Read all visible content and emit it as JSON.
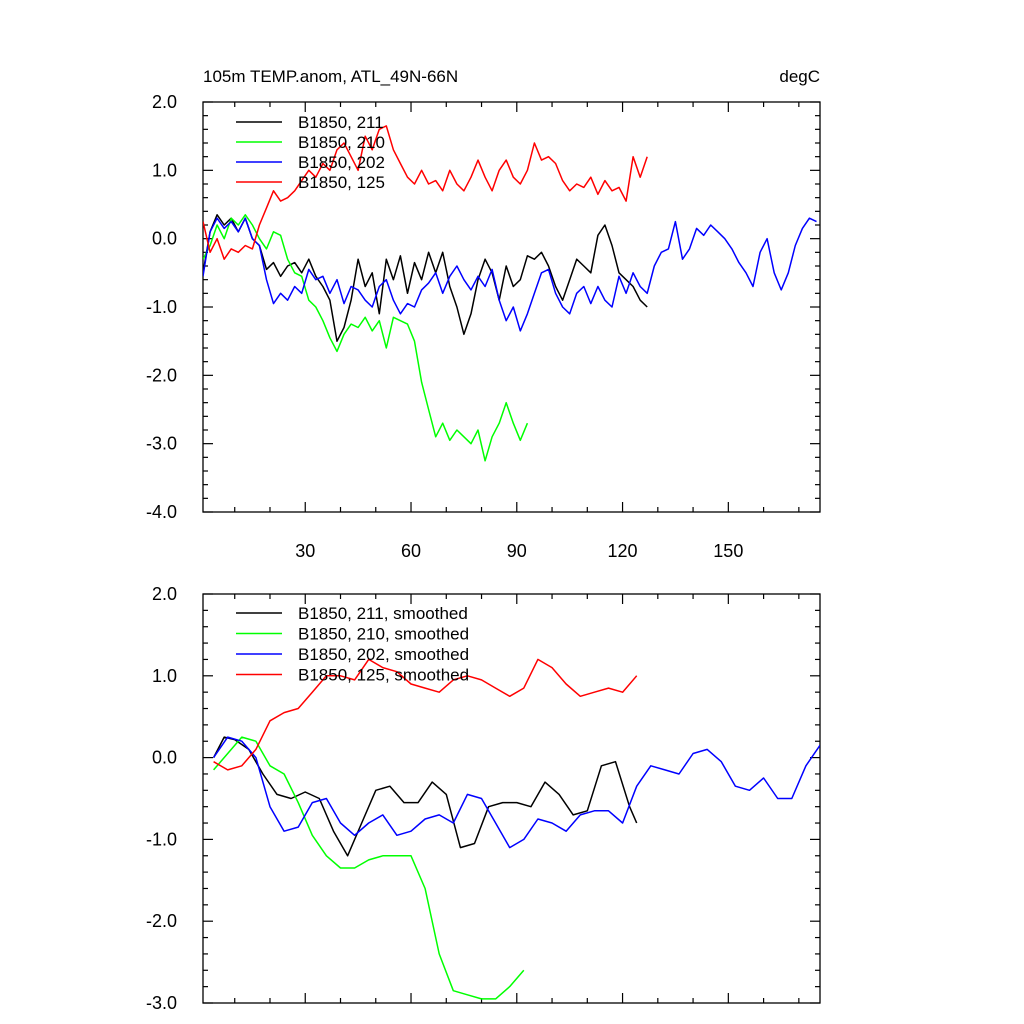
{
  "chart_data": [
    {
      "type": "line",
      "title": "105m TEMP.anom, ATL_49N-66N",
      "units": "degC",
      "xlabel": "",
      "ylabel": "",
      "xlim": [
        1,
        176
      ],
      "ylim": [
        -4.0,
        2.0
      ],
      "yticks": [
        -4.0,
        -3.0,
        -2.0,
        -1.0,
        0.0,
        1.0,
        2.0
      ],
      "ytick_labels": [
        "-4.0",
        "-3.0",
        "-2.0",
        "-1.0",
        "0.0",
        "1.0",
        "2.0"
      ],
      "xticks": [
        30,
        60,
        90,
        120,
        150
      ],
      "xtick_labels": [
        "30",
        "60",
        "90",
        "120",
        "150"
      ],
      "legend_position": "top-left",
      "series": [
        {
          "name": "B1850, 211",
          "color": "#000000",
          "x": [
            1,
            3,
            5,
            7,
            9,
            11,
            13,
            15,
            17,
            19,
            21,
            23,
            25,
            27,
            29,
            31,
            33,
            35,
            37,
            39,
            41,
            43,
            45,
            47,
            49,
            51,
            53,
            55,
            57,
            59,
            61,
            63,
            65,
            67,
            69,
            71,
            73,
            75,
            77,
            79,
            81,
            83,
            85,
            87,
            89,
            91,
            93,
            95,
            97,
            99,
            101,
            103,
            105,
            107,
            109,
            111,
            113,
            115,
            117,
            119,
            121,
            123,
            125,
            127
          ],
          "y": [
            -0.5,
            0.1,
            0.35,
            0.2,
            0.3,
            0.1,
            0.3,
            0.0,
            -0.1,
            -0.45,
            -0.35,
            -0.55,
            -0.4,
            -0.35,
            -0.5,
            -0.3,
            -0.55,
            -0.7,
            -0.9,
            -1.5,
            -1.3,
            -0.9,
            -0.3,
            -0.7,
            -0.5,
            -1.1,
            -0.3,
            -0.6,
            -0.25,
            -0.8,
            -0.35,
            -0.6,
            -0.2,
            -0.5,
            -0.2,
            -0.7,
            -1.0,
            -1.4,
            -1.1,
            -0.6,
            -0.3,
            -0.5,
            -0.9,
            -0.4,
            -0.7,
            -0.6,
            -0.25,
            -0.3,
            -0.2,
            -0.4,
            -0.7,
            -0.9,
            -0.6,
            -0.3,
            -0.4,
            -0.5,
            0.05,
            0.2,
            -0.1,
            -0.5,
            -0.6,
            -0.7,
            -0.9,
            -1.0
          ]
        },
        {
          "name": "B1850, 210",
          "color": "#00ff00",
          "x": [
            1,
            3,
            5,
            7,
            9,
            11,
            13,
            15,
            17,
            19,
            21,
            23,
            25,
            27,
            29,
            31,
            33,
            35,
            37,
            39,
            41,
            43,
            45,
            47,
            49,
            51,
            53,
            55,
            57,
            59,
            61,
            63,
            65,
            67,
            69,
            71,
            73,
            75,
            77,
            79,
            81,
            83,
            85,
            87,
            89,
            91,
            93
          ],
          "y": [
            -0.3,
            -0.1,
            0.2,
            0.0,
            0.3,
            0.2,
            0.35,
            0.2,
            0.0,
            -0.15,
            0.1,
            0.05,
            -0.3,
            -0.5,
            -0.55,
            -0.9,
            -1.0,
            -1.2,
            -1.45,
            -1.65,
            -1.4,
            -1.25,
            -1.3,
            -1.15,
            -1.35,
            -1.2,
            -1.6,
            -1.15,
            -1.2,
            -1.25,
            -1.5,
            -2.1,
            -2.5,
            -2.9,
            -2.7,
            -2.95,
            -2.8,
            -2.9,
            -3.0,
            -2.8,
            -3.25,
            -2.9,
            -2.7,
            -2.4,
            -2.7,
            -2.95,
            -2.7
          ]
        },
        {
          "name": "B1850, 202",
          "color": "#0000ff",
          "x": [
            1,
            3,
            5,
            7,
            9,
            11,
            13,
            15,
            17,
            19,
            21,
            23,
            25,
            27,
            29,
            31,
            33,
            35,
            37,
            39,
            41,
            43,
            45,
            47,
            49,
            51,
            53,
            55,
            57,
            59,
            61,
            63,
            65,
            67,
            69,
            71,
            73,
            75,
            77,
            79,
            81,
            83,
            85,
            87,
            89,
            91,
            93,
            95,
            97,
            99,
            101,
            103,
            105,
            107,
            109,
            111,
            113,
            115,
            117,
            119,
            121,
            123,
            125,
            127,
            129,
            131,
            133,
            135,
            137,
            139,
            141,
            143,
            145,
            147,
            149,
            151,
            153,
            155,
            157,
            159,
            161,
            163,
            165,
            167,
            169,
            171,
            173,
            175
          ],
          "y": [
            -0.55,
            0.1,
            0.3,
            0.15,
            0.25,
            0.1,
            0.3,
            0.0,
            -0.1,
            -0.6,
            -0.95,
            -0.8,
            -0.9,
            -0.7,
            -0.8,
            -0.45,
            -0.6,
            -0.55,
            -0.8,
            -0.6,
            -0.95,
            -0.7,
            -0.75,
            -0.9,
            -1.0,
            -0.7,
            -0.6,
            -0.9,
            -1.1,
            -0.95,
            -1.0,
            -0.75,
            -0.65,
            -0.5,
            -0.8,
            -0.55,
            -0.4,
            -0.6,
            -0.75,
            -0.55,
            -0.7,
            -0.45,
            -0.9,
            -1.2,
            -1.0,
            -1.35,
            -1.1,
            -0.8,
            -0.5,
            -0.45,
            -0.8,
            -1.0,
            -1.1,
            -0.8,
            -0.7,
            -0.95,
            -0.7,
            -0.9,
            -1.0,
            -0.55,
            -0.8,
            -0.5,
            -0.7,
            -0.8,
            -0.4,
            -0.2,
            -0.15,
            0.25,
            -0.3,
            -0.15,
            0.15,
            0.05,
            0.2,
            0.1,
            0.0,
            -0.15,
            -0.35,
            -0.5,
            -0.7,
            -0.2,
            0.0,
            -0.5,
            -0.75,
            -0.5,
            -0.1,
            0.15,
            0.3,
            0.25
          ]
        },
        {
          "name": "B1850, 125",
          "color": "#ff0000",
          "x": [
            1,
            3,
            5,
            7,
            9,
            11,
            13,
            15,
            17,
            19,
            21,
            23,
            25,
            27,
            29,
            31,
            33,
            35,
            37,
            39,
            41,
            43,
            45,
            47,
            49,
            51,
            53,
            55,
            57,
            59,
            61,
            63,
            65,
            67,
            69,
            71,
            73,
            75,
            77,
            79,
            81,
            83,
            85,
            87,
            89,
            91,
            93,
            95,
            97,
            99,
            101,
            103,
            105,
            107,
            109,
            111,
            113,
            115,
            117,
            119,
            121,
            123,
            125,
            127
          ],
          "y": [
            0.25,
            -0.2,
            0.0,
            -0.3,
            -0.15,
            -0.2,
            -0.1,
            -0.15,
            0.2,
            0.45,
            0.7,
            0.55,
            0.6,
            0.7,
            0.85,
            1.0,
            0.9,
            1.1,
            1.0,
            1.3,
            1.4,
            1.2,
            1.0,
            1.5,
            1.3,
            1.6,
            1.65,
            1.3,
            1.1,
            0.9,
            0.8,
            1.0,
            0.8,
            0.85,
            0.7,
            1.0,
            0.8,
            0.7,
            0.9,
            1.15,
            0.9,
            0.7,
            1.0,
            1.15,
            0.9,
            0.8,
            1.0,
            1.4,
            1.15,
            1.2,
            1.1,
            0.85,
            0.7,
            0.8,
            0.75,
            0.9,
            0.65,
            0.85,
            0.7,
            0.75,
            0.55,
            1.2,
            0.9,
            1.2
          ]
        }
      ]
    },
    {
      "type": "line",
      "title": "",
      "xlabel": "",
      "ylabel": "",
      "xlim": [
        1,
        176
      ],
      "ylim": [
        -3.0,
        2.0
      ],
      "yticks": [
        -3.0,
        -2.0,
        -1.0,
        0.0,
        1.0,
        2.0
      ],
      "ytick_labels": [
        "-3.0",
        "-2.0",
        "-1.0",
        "0.0",
        "1.0",
        "2.0"
      ],
      "xticks": [
        30,
        60,
        90,
        120,
        150
      ],
      "legend_position": "top-left",
      "series": [
        {
          "name": "B1850, 211, smoothed",
          "color": "#000000",
          "x": [
            4,
            7,
            10,
            14,
            18,
            22,
            26,
            30,
            34,
            38,
            42,
            46,
            50,
            54,
            58,
            62,
            66,
            70,
            74,
            78,
            82,
            86,
            90,
            94,
            98,
            102,
            106,
            110,
            114,
            118,
            122,
            124
          ],
          "y": [
            0.0,
            0.25,
            0.22,
            0.1,
            -0.2,
            -0.45,
            -0.5,
            -0.42,
            -0.5,
            -0.9,
            -1.2,
            -0.8,
            -0.4,
            -0.35,
            -0.55,
            -0.55,
            -0.3,
            -0.45,
            -1.1,
            -1.05,
            -0.6,
            -0.55,
            -0.55,
            -0.6,
            -0.3,
            -0.45,
            -0.7,
            -0.65,
            -0.1,
            -0.05,
            -0.6,
            -0.8
          ]
        },
        {
          "name": "B1850, 210, smoothed",
          "color": "#00ff00",
          "x": [
            4,
            8,
            12,
            16,
            20,
            24,
            28,
            32,
            36,
            40,
            44,
            48,
            52,
            56,
            60,
            64,
            68,
            72,
            76,
            80,
            84,
            88,
            92
          ],
          "y": [
            -0.15,
            0.05,
            0.25,
            0.2,
            -0.1,
            -0.2,
            -0.55,
            -0.95,
            -1.2,
            -1.35,
            -1.35,
            -1.25,
            -1.2,
            -1.2,
            -1.2,
            -1.6,
            -2.4,
            -2.85,
            -2.9,
            -2.95,
            -2.95,
            -2.8,
            -2.6
          ]
        },
        {
          "name": "B1850, 202, smoothed",
          "color": "#0000ff",
          "x": [
            4,
            8,
            12,
            16,
            20,
            24,
            28,
            32,
            36,
            40,
            44,
            48,
            52,
            56,
            60,
            64,
            68,
            72,
            76,
            80,
            84,
            88,
            92,
            96,
            100,
            104,
            108,
            112,
            116,
            120,
            124,
            128,
            132,
            136,
            140,
            144,
            148,
            152,
            156,
            160,
            164,
            168,
            172,
            176
          ],
          "y": [
            0.0,
            0.25,
            0.2,
            0.0,
            -0.6,
            -0.9,
            -0.85,
            -0.55,
            -0.5,
            -0.8,
            -0.95,
            -0.8,
            -0.7,
            -0.95,
            -0.9,
            -0.75,
            -0.7,
            -0.8,
            -0.45,
            -0.5,
            -0.8,
            -1.1,
            -1.0,
            -0.75,
            -0.8,
            -0.9,
            -0.7,
            -0.65,
            -0.65,
            -0.8,
            -0.35,
            -0.1,
            -0.15,
            -0.2,
            0.05,
            0.1,
            -0.05,
            -0.35,
            -0.4,
            -0.25,
            -0.5,
            -0.5,
            -0.1,
            0.15
          ]
        },
        {
          "name": "B1850, 125, smoothed",
          "color": "#ff0000",
          "x": [
            4,
            8,
            12,
            16,
            20,
            24,
            28,
            32,
            36,
            40,
            44,
            48,
            52,
            56,
            60,
            64,
            68,
            72,
            76,
            80,
            84,
            88,
            92,
            96,
            100,
            104,
            108,
            112,
            116,
            120,
            124
          ],
          "y": [
            -0.05,
            -0.15,
            -0.1,
            0.1,
            0.45,
            0.55,
            0.6,
            0.8,
            1.0,
            1.0,
            0.95,
            1.2,
            1.1,
            1.05,
            0.9,
            0.85,
            0.8,
            0.95,
            1.0,
            0.95,
            0.85,
            0.75,
            0.85,
            1.2,
            1.1,
            0.9,
            0.75,
            0.8,
            0.85,
            0.8,
            1.0
          ]
        }
      ]
    }
  ]
}
